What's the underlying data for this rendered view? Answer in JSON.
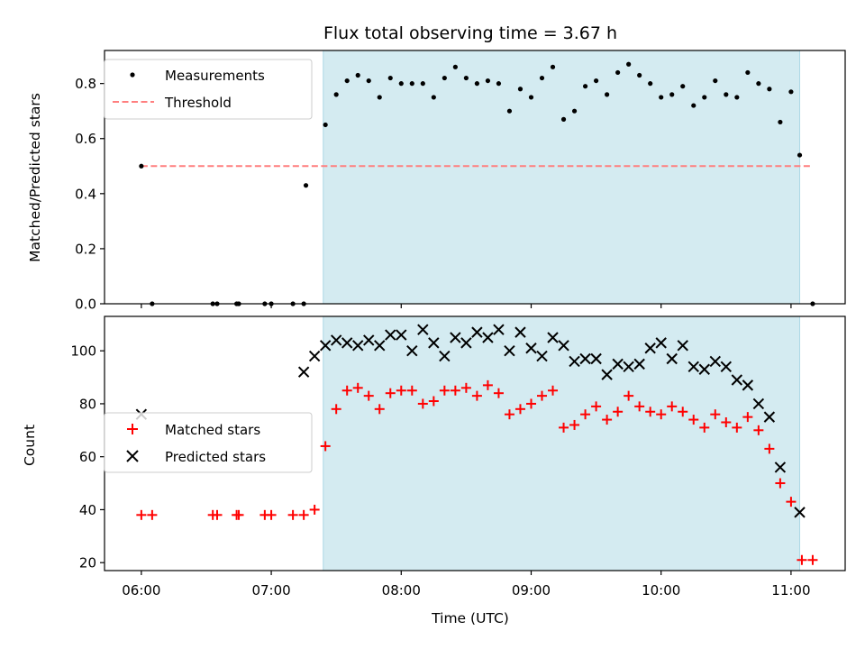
{
  "chart_data": [
    {
      "type": "scatter",
      "title": "Flux total observing time = 3.67 h",
      "ylabel": "Matched/Predicted stars",
      "xlim": [
        "05:43",
        "11:25"
      ],
      "ylim": [
        0,
        0.92
      ],
      "yticks": [
        "0.0",
        "0.2",
        "0.4",
        "0.6",
        "0.8"
      ],
      "shaded_region": [
        "07:24",
        "11:04"
      ],
      "legend": {
        "placement": "top-left",
        "entries": [
          "Measurements",
          "Threshold"
        ]
      },
      "threshold": {
        "name": "Threshold",
        "value": 0.5,
        "x": [
          "06:00",
          "11:10"
        ],
        "color": "#ff7f7f"
      },
      "series": [
        {
          "name": "Measurements",
          "color": "#000000",
          "points": [
            [
              "06:00",
              0.5
            ],
            [
              "06:05",
              0.0
            ],
            [
              "06:33",
              0.0
            ],
            [
              "06:35",
              0.0
            ],
            [
              "06:44",
              0.0
            ],
            [
              "06:45",
              0.0
            ],
            [
              "06:57",
              0.0
            ],
            [
              "07:00",
              0.0
            ],
            [
              "07:10",
              0.0
            ],
            [
              "07:15",
              0.0
            ],
            [
              "07:16",
              0.43
            ],
            [
              "07:25",
              0.65
            ],
            [
              "07:30",
              0.76
            ],
            [
              "07:35",
              0.81
            ],
            [
              "07:40",
              0.83
            ],
            [
              "07:45",
              0.81
            ],
            [
              "07:50",
              0.75
            ],
            [
              "07:55",
              0.82
            ],
            [
              "08:00",
              0.8
            ],
            [
              "08:05",
              0.8
            ],
            [
              "08:10",
              0.8
            ],
            [
              "08:15",
              0.75
            ],
            [
              "08:20",
              0.82
            ],
            [
              "08:25",
              0.86
            ],
            [
              "08:30",
              0.82
            ],
            [
              "08:35",
              0.8
            ],
            [
              "08:40",
              0.81
            ],
            [
              "08:45",
              0.8
            ],
            [
              "08:50",
              0.7
            ],
            [
              "08:55",
              0.78
            ],
            [
              "09:00",
              0.75
            ],
            [
              "09:05",
              0.82
            ],
            [
              "09:10",
              0.86
            ],
            [
              "09:15",
              0.67
            ],
            [
              "09:20",
              0.7
            ],
            [
              "09:25",
              0.79
            ],
            [
              "09:30",
              0.81
            ],
            [
              "09:35",
              0.76
            ],
            [
              "09:40",
              0.84
            ],
            [
              "09:45",
              0.87
            ],
            [
              "09:50",
              0.83
            ],
            [
              "09:55",
              0.8
            ],
            [
              "10:00",
              0.75
            ],
            [
              "10:05",
              0.76
            ],
            [
              "10:10",
              0.79
            ],
            [
              "10:15",
              0.72
            ],
            [
              "10:20",
              0.75
            ],
            [
              "10:25",
              0.81
            ],
            [
              "10:30",
              0.76
            ],
            [
              "10:35",
              0.75
            ],
            [
              "10:40",
              0.84
            ],
            [
              "10:45",
              0.8
            ],
            [
              "10:50",
              0.78
            ],
            [
              "10:55",
              0.66
            ],
            [
              "11:00",
              0.77
            ],
            [
              "11:04",
              0.54
            ],
            [
              "11:10",
              0.0
            ]
          ]
        }
      ]
    },
    {
      "type": "scatter",
      "xlabel": "Time (UTC)",
      "ylabel": "Count",
      "xlim": [
        "05:43",
        "11:25"
      ],
      "ylim": [
        17,
        113
      ],
      "xticks": [
        "06:00",
        "07:00",
        "08:00",
        "09:00",
        "10:00",
        "11:00"
      ],
      "yticks": [
        "20",
        "40",
        "60",
        "80",
        "100"
      ],
      "shaded_region": [
        "07:24",
        "11:04"
      ],
      "legend": {
        "placement": "center-left",
        "entries": [
          "Matched stars",
          "Predicted stars"
        ]
      },
      "series": [
        {
          "name": "Matched stars",
          "marker": "plus",
          "color": "#ff0000",
          "points": [
            [
              "06:00",
              38
            ],
            [
              "06:05",
              38
            ],
            [
              "06:33",
              38
            ],
            [
              "06:35",
              38
            ],
            [
              "06:44",
              38
            ],
            [
              "06:45",
              38
            ],
            [
              "06:57",
              38
            ],
            [
              "07:00",
              38
            ],
            [
              "07:10",
              38
            ],
            [
              "07:15",
              38
            ],
            [
              "07:20",
              40
            ],
            [
              "07:25",
              64
            ],
            [
              "07:30",
              78
            ],
            [
              "07:35",
              85
            ],
            [
              "07:40",
              86
            ],
            [
              "07:45",
              83
            ],
            [
              "07:50",
              78
            ],
            [
              "07:55",
              84
            ],
            [
              "08:00",
              85
            ],
            [
              "08:05",
              85
            ],
            [
              "08:10",
              80
            ],
            [
              "08:15",
              81
            ],
            [
              "08:20",
              85
            ],
            [
              "08:25",
              85
            ],
            [
              "08:30",
              86
            ],
            [
              "08:35",
              83
            ],
            [
              "08:40",
              87
            ],
            [
              "08:45",
              84
            ],
            [
              "08:50",
              76
            ],
            [
              "08:55",
              78
            ],
            [
              "09:00",
              80
            ],
            [
              "09:05",
              83
            ],
            [
              "09:10",
              85
            ],
            [
              "09:15",
              71
            ],
            [
              "09:20",
              72
            ],
            [
              "09:25",
              76
            ],
            [
              "09:30",
              79
            ],
            [
              "09:35",
              74
            ],
            [
              "09:40",
              77
            ],
            [
              "09:45",
              83
            ],
            [
              "09:50",
              79
            ],
            [
              "09:55",
              77
            ],
            [
              "10:00",
              76
            ],
            [
              "10:05",
              79
            ],
            [
              "10:10",
              77
            ],
            [
              "10:15",
              74
            ],
            [
              "10:20",
              71
            ],
            [
              "10:25",
              76
            ],
            [
              "10:30",
              73
            ],
            [
              "10:35",
              71
            ],
            [
              "10:40",
              75
            ],
            [
              "10:45",
              70
            ],
            [
              "10:50",
              63
            ],
            [
              "10:55",
              50
            ],
            [
              "11:00",
              43
            ],
            [
              "11:05",
              21
            ],
            [
              "11:10",
              21
            ]
          ]
        },
        {
          "name": "Predicted stars",
          "marker": "x",
          "color": "#000000",
          "points": [
            [
              "06:00",
              76
            ],
            [
              "07:15",
              92
            ],
            [
              "07:20",
              98
            ],
            [
              "07:25",
              102
            ],
            [
              "07:30",
              104
            ],
            [
              "07:35",
              103
            ],
            [
              "07:40",
              102
            ],
            [
              "07:45",
              104
            ],
            [
              "07:50",
              102
            ],
            [
              "07:55",
              106
            ],
            [
              "08:00",
              106
            ],
            [
              "08:05",
              100
            ],
            [
              "08:10",
              108
            ],
            [
              "08:15",
              103
            ],
            [
              "08:20",
              98
            ],
            [
              "08:25",
              105
            ],
            [
              "08:30",
              103
            ],
            [
              "08:35",
              107
            ],
            [
              "08:40",
              105
            ],
            [
              "08:45",
              108
            ],
            [
              "08:50",
              100
            ],
            [
              "08:55",
              107
            ],
            [
              "09:00",
              101
            ],
            [
              "09:05",
              98
            ],
            [
              "09:10",
              105
            ],
            [
              "09:15",
              102
            ],
            [
              "09:20",
              96
            ],
            [
              "09:25",
              97
            ],
            [
              "09:30",
              97
            ],
            [
              "09:35",
              91
            ],
            [
              "09:40",
              95
            ],
            [
              "09:45",
              94
            ],
            [
              "09:50",
              95
            ],
            [
              "09:55",
              101
            ],
            [
              "10:00",
              103
            ],
            [
              "10:05",
              97
            ],
            [
              "10:10",
              102
            ],
            [
              "10:15",
              94
            ],
            [
              "10:20",
              93
            ],
            [
              "10:25",
              96
            ],
            [
              "10:30",
              94
            ],
            [
              "10:35",
              89
            ],
            [
              "10:40",
              87
            ],
            [
              "10:45",
              80
            ],
            [
              "10:50",
              75
            ],
            [
              "10:55",
              56
            ],
            [
              "11:04",
              39
            ]
          ]
        }
      ]
    }
  ],
  "colors": {
    "shade": "#d4ebf1",
    "shade_edge": "#add8e6"
  }
}
